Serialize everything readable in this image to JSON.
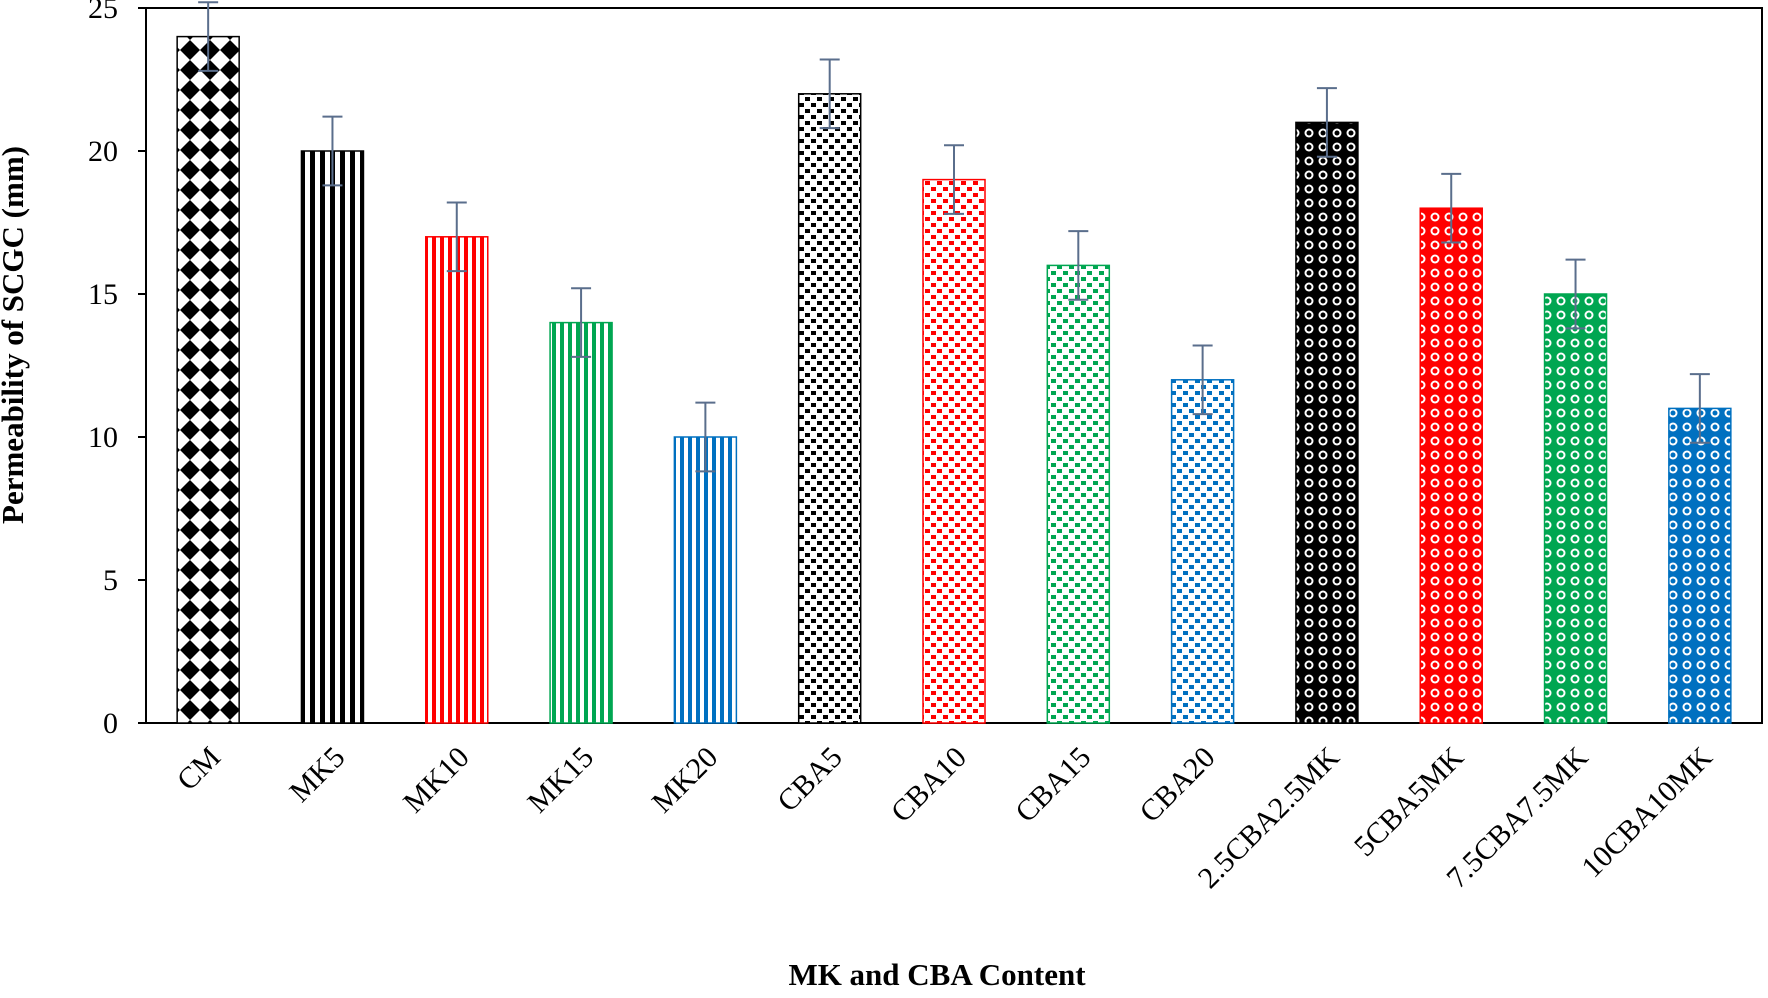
{
  "chart_data": {
    "type": "bar",
    "title": "",
    "xlabel": "MK and CBA Content",
    "ylabel": "Permeability of SCGC (mm)",
    "ylim": [
      0,
      25
    ],
    "yticks": [
      0,
      5,
      10,
      15,
      20,
      25
    ],
    "grid": false,
    "categories": [
      "CM",
      "MK5",
      "MK10",
      "MK15",
      "MK20",
      "CBA5",
      "CBA10",
      "CBA15",
      "CBA20",
      "2.5CBA2.5MK",
      "5CBA5MK",
      "7.5CBA7.5MK",
      "10CBA10MK"
    ],
    "values": [
      24,
      20,
      17,
      14,
      10,
      22,
      19,
      16,
      12,
      21,
      18,
      15,
      11
    ],
    "errors": [
      1.2,
      1.2,
      1.2,
      1.2,
      1.2,
      1.2,
      1.2,
      1.2,
      1.2,
      1.2,
      1.2,
      1.2,
      1.2
    ],
    "colors": [
      "#000000",
      "#000000",
      "#ff0000",
      "#00a651",
      "#0070c0",
      "#000000",
      "#ff0000",
      "#00a651",
      "#0070c0",
      "#000000",
      "#ff0000",
      "#00a651",
      "#0070c0"
    ],
    "patterns": [
      "diamond",
      "vstripe-wide",
      "vstripe",
      "vstripe",
      "vstripe",
      "squares",
      "squares",
      "squares",
      "squares",
      "circles",
      "circles",
      "circles",
      "circles"
    ],
    "error_bar_color": "#5a6e8c"
  }
}
